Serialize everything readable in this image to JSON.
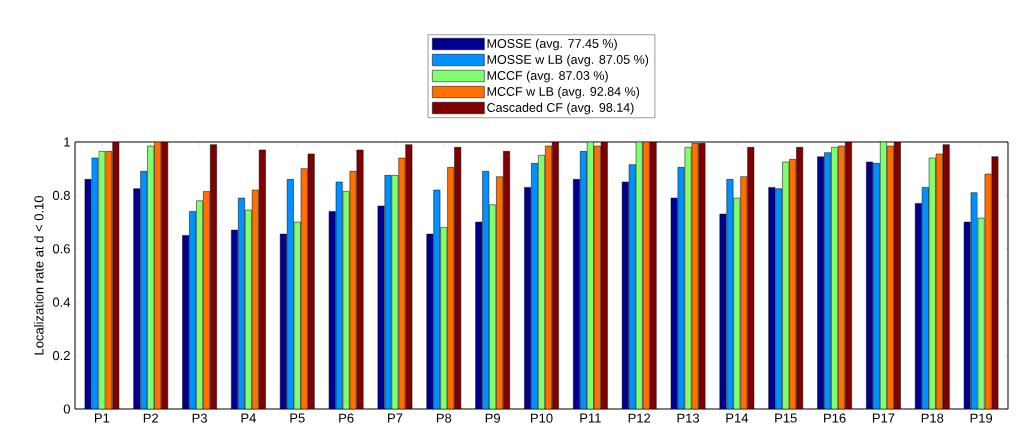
{
  "chart_data": {
    "type": "bar",
    "ylabel": "Localization rate at d < 0.10",
    "categories": [
      "P1",
      "P2",
      "P3",
      "P4",
      "P5",
      "P6",
      "P7",
      "P8",
      "P9",
      "P10",
      "P11",
      "P12",
      "P13",
      "P14",
      "P15",
      "P16",
      "P17",
      "P18",
      "P19"
    ],
    "series": [
      {
        "name": "MOSSE (avg. 77.45 %)",
        "color": "#00008f",
        "values": [
          0.86,
          0.825,
          0.65,
          0.67,
          0.655,
          0.74,
          0.76,
          0.655,
          0.7,
          0.83,
          0.86,
          0.85,
          0.79,
          0.73,
          0.83,
          0.945,
          0.925,
          0.77,
          0.7
        ]
      },
      {
        "name": "MOSSE w LB (avg. 87.05 %)",
        "color": "#0090ff",
        "values": [
          0.94,
          0.89,
          0.74,
          0.79,
          0.86,
          0.85,
          0.875,
          0.82,
          0.89,
          0.92,
          0.965,
          0.915,
          0.905,
          0.86,
          0.825,
          0.96,
          0.92,
          0.83,
          0.81
        ]
      },
      {
        "name": "MCCF (avg. 87.03 %)",
        "color": "#80ff70",
        "values": [
          0.965,
          0.985,
          0.78,
          0.745,
          0.7,
          0.815,
          0.875,
          0.68,
          0.765,
          0.95,
          1.0,
          1.0,
          0.98,
          0.79,
          0.925,
          0.98,
          1.0,
          0.94,
          0.715
        ]
      },
      {
        "name": "MCCF w LB (avg. 92.84 %)",
        "color": "#ff7000",
        "values": [
          0.965,
          1.0,
          0.815,
          0.82,
          0.9,
          0.89,
          0.94,
          0.905,
          0.87,
          0.985,
          0.985,
          1.0,
          0.995,
          0.87,
          0.935,
          0.985,
          0.985,
          0.955,
          0.88
        ]
      },
      {
        "name": "Cascaded CF (avg. 98.14)",
        "color": "#800000",
        "values": [
          1.0,
          1.0,
          0.99,
          0.97,
          0.955,
          0.97,
          0.99,
          0.98,
          0.965,
          1.0,
          1.0,
          1.0,
          0.995,
          0.98,
          0.98,
          1.0,
          1.0,
          0.99,
          0.945
        ]
      }
    ],
    "ylim": [
      0,
      1
    ],
    "yticks": [
      0,
      0.2,
      0.4,
      0.6,
      0.8,
      1
    ],
    "legend": "top"
  }
}
